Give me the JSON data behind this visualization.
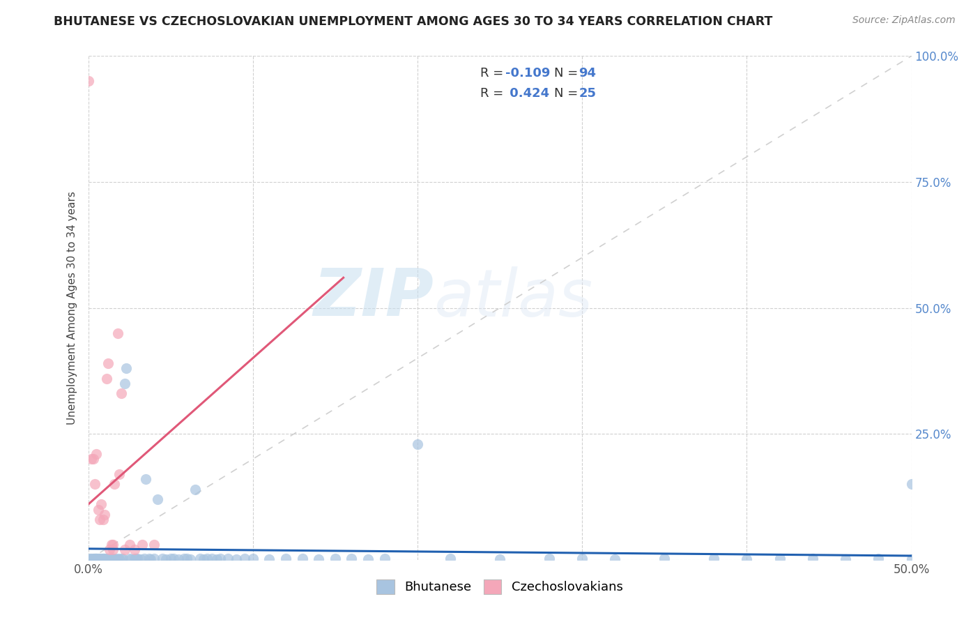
{
  "title": "BHUTANESE VS CZECHOSLOVAKIAN UNEMPLOYMENT AMONG AGES 30 TO 34 YEARS CORRELATION CHART",
  "source": "Source: ZipAtlas.com",
  "ylabel": "Unemployment Among Ages 30 to 34 years",
  "xlim": [
    0.0,
    0.5
  ],
  "ylim": [
    0.0,
    1.0
  ],
  "bhutanese_color": "#a8c4e0",
  "czechoslovakian_color": "#f4a7b9",
  "bhutanese_R": -0.109,
  "bhutanese_N": 94,
  "czechoslovakian_R": 0.424,
  "czechoslovakian_N": 25,
  "bhutanese_line_color": "#2060b0",
  "czechoslovakian_line_color": "#e05878",
  "diagonal_line_color": "#d0d0d0",
  "watermark_zip": "ZIP",
  "watermark_atlas": "atlas",
  "bhutanese_x": [
    0.001,
    0.001,
    0.002,
    0.002,
    0.003,
    0.003,
    0.004,
    0.004,
    0.005,
    0.005,
    0.006,
    0.006,
    0.007,
    0.007,
    0.008,
    0.008,
    0.009,
    0.009,
    0.01,
    0.01,
    0.011,
    0.011,
    0.012,
    0.012,
    0.013,
    0.014,
    0.015,
    0.015,
    0.016,
    0.017,
    0.018,
    0.019,
    0.02,
    0.021,
    0.022,
    0.023,
    0.025,
    0.026,
    0.028,
    0.029,
    0.03,
    0.032,
    0.034,
    0.035,
    0.037,
    0.038,
    0.04,
    0.042,
    0.045,
    0.047,
    0.05,
    0.052,
    0.055,
    0.058,
    0.06,
    0.062,
    0.065,
    0.068,
    0.07,
    0.072,
    0.075,
    0.078,
    0.08,
    0.085,
    0.09,
    0.095,
    0.1,
    0.11,
    0.12,
    0.13,
    0.14,
    0.15,
    0.16,
    0.17,
    0.18,
    0.2,
    0.22,
    0.25,
    0.28,
    0.3,
    0.32,
    0.35,
    0.38,
    0.4,
    0.42,
    0.44,
    0.46,
    0.48,
    0.5,
    0.5,
    0.003,
    0.005,
    0.007,
    0.009
  ],
  "bhutanese_y": [
    0.002,
    0.001,
    0.003,
    0.001,
    0.002,
    0.001,
    0.003,
    0.002,
    0.003,
    0.002,
    0.001,
    0.002,
    0.003,
    0.001,
    0.002,
    0.001,
    0.003,
    0.002,
    0.003,
    0.001,
    0.002,
    0.001,
    0.003,
    0.002,
    0.001,
    0.002,
    0.003,
    0.001,
    0.002,
    0.001,
    0.002,
    0.001,
    0.003,
    0.002,
    0.35,
    0.38,
    0.002,
    0.001,
    0.003,
    0.002,
    0.003,
    0.001,
    0.002,
    0.16,
    0.002,
    0.001,
    0.003,
    0.12,
    0.002,
    0.001,
    0.003,
    0.002,
    0.001,
    0.003,
    0.002,
    0.001,
    0.14,
    0.002,
    0.001,
    0.003,
    0.002,
    0.001,
    0.003,
    0.002,
    0.001,
    0.003,
    0.002,
    0.001,
    0.003,
    0.002,
    0.001,
    0.003,
    0.002,
    0.001,
    0.003,
    0.23,
    0.002,
    0.001,
    0.003,
    0.002,
    0.001,
    0.003,
    0.002,
    0.001,
    0.003,
    0.002,
    0.001,
    0.003,
    0.15,
    0.001,
    0.001,
    0.001,
    0.001,
    0.001
  ],
  "czechoslovakian_x": [
    0.0,
    0.002,
    0.003,
    0.004,
    0.005,
    0.006,
    0.007,
    0.008,
    0.009,
    0.01,
    0.011,
    0.012,
    0.013,
    0.014,
    0.015,
    0.015,
    0.016,
    0.018,
    0.019,
    0.02,
    0.022,
    0.025,
    0.028,
    0.033,
    0.04
  ],
  "czechoslovakian_y": [
    0.95,
    0.2,
    0.2,
    0.15,
    0.21,
    0.1,
    0.08,
    0.11,
    0.08,
    0.09,
    0.36,
    0.39,
    0.02,
    0.03,
    0.02,
    0.03,
    0.15,
    0.45,
    0.17,
    0.33,
    0.02,
    0.03,
    0.02,
    0.03,
    0.03
  ],
  "czecho_line_x0": 0.0,
  "czecho_line_x1": 0.155,
  "czecho_line_y0": 0.11,
  "czecho_line_y1": 0.56,
  "bhut_line_x0": 0.0,
  "bhut_line_x1": 0.5,
  "bhut_line_y0": 0.022,
  "bhut_line_y1": 0.008
}
